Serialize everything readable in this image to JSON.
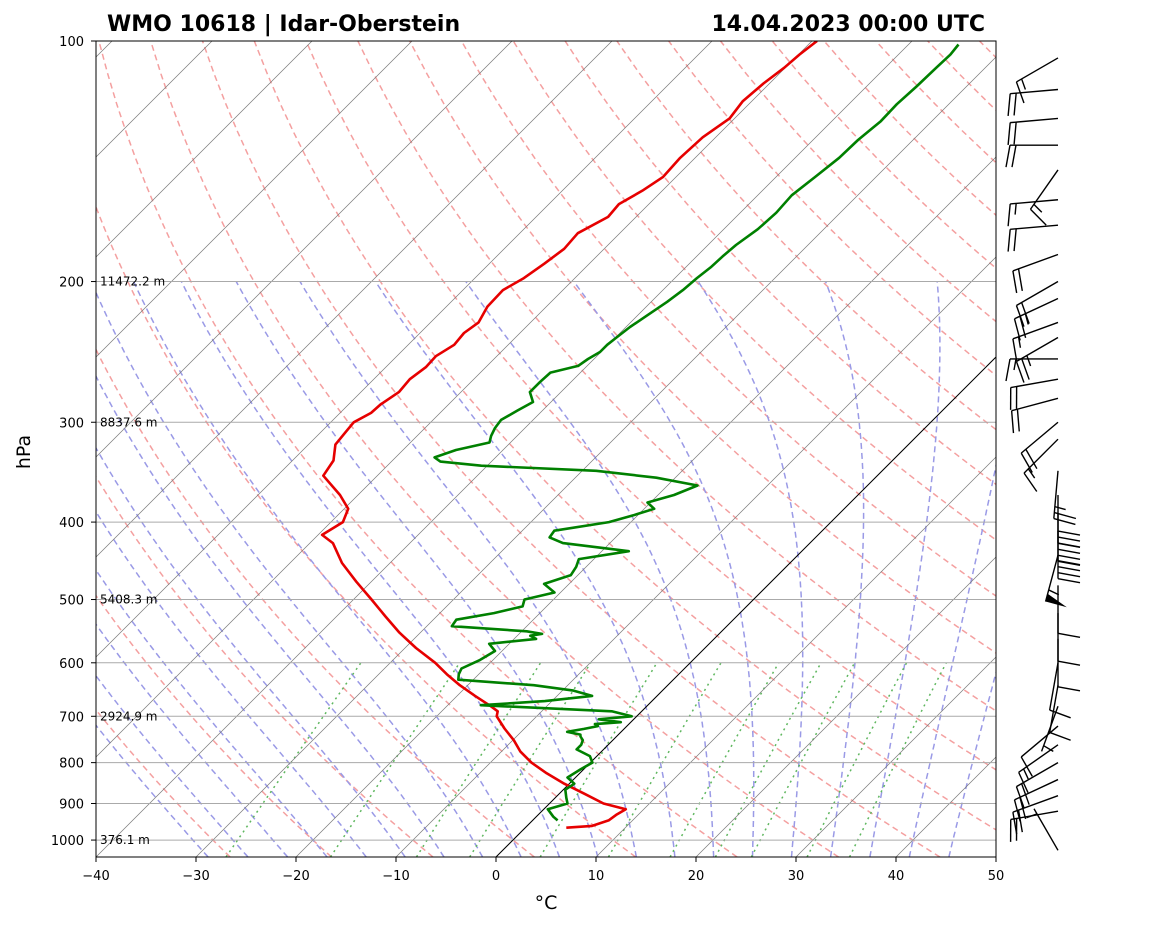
{
  "header": {
    "station": "WMO 10618 | Idar-Oberstein",
    "datetime": "14.04.2023 00:00 UTC"
  },
  "chart_data": {
    "type": "line",
    "skew_t": true,
    "xlabel": "°C",
    "ylabel": "hPa",
    "xlim": [
      -40,
      50
    ],
    "ylim": [
      1050,
      100
    ],
    "y_scale": "log",
    "x_ticks": [
      -40,
      -30,
      -20,
      -10,
      0,
      10,
      20,
      30,
      40,
      50
    ],
    "x_tick_labels": [
      "−40",
      "−30",
      "−20",
      "−10",
      "0",
      "10",
      "20",
      "30",
      "40",
      "50"
    ],
    "y_ticks": [
      100,
      200,
      300,
      400,
      500,
      600,
      700,
      800,
      900,
      1000
    ],
    "y_tick_labels": [
      "100",
      "200",
      "300",
      "400",
      "500",
      "600",
      "700",
      "800",
      "900",
      "1000"
    ],
    "height_labels": [
      {
        "p": 1000,
        "text": "376.1 m"
      },
      {
        "p": 700,
        "text": "2924.9 m"
      },
      {
        "p": 500,
        "text": "5408.3 m"
      },
      {
        "p": 300,
        "text": "8837.6 m"
      },
      {
        "p": 200,
        "text": "11472.2 m"
      }
    ],
    "zero_isotherm": 0,
    "series": [
      {
        "color": "#e60000",
        "p": [
          965,
          960,
          945,
          930,
          915,
          900,
          875,
          850,
          825,
          800,
          775,
          750,
          725,
          700,
          690,
          680,
          660,
          640,
          620,
          600,
          575,
          550,
          525,
          500,
          475,
          450,
          425,
          415,
          400,
          385,
          370,
          350,
          335,
          320,
          310,
          300,
          292,
          285,
          275,
          265,
          256,
          248,
          240,
          232,
          225,
          215,
          205,
          198,
          190,
          182,
          174,
          166,
          160,
          154,
          148,
          140,
          132,
          125,
          119,
          113,
          108,
          104,
          100
        ],
        "t": [
          4.1,
          6.5,
          7.6,
          7.8,
          8.2,
          5.4,
          2.5,
          -0.5,
          -3.3,
          -5.9,
          -8.1,
          -9.9,
          -12.0,
          -14.0,
          -14.4,
          -15.6,
          -18.2,
          -20.8,
          -23.2,
          -25.5,
          -28.9,
          -32.1,
          -35.1,
          -38.2,
          -41.5,
          -44.8,
          -47.7,
          -49.6,
          -48.8,
          -49.6,
          -51.8,
          -55.4,
          -55.9,
          -57.3,
          -57.5,
          -57.7,
          -56.9,
          -56.8,
          -56.2,
          -56.4,
          -56.0,
          -56.1,
          -55.4,
          -55.6,
          -55.2,
          -55.9,
          -56.0,
          -55.1,
          -54.5,
          -54.0,
          -54.2,
          -52.8,
          -53.0,
          -52.0,
          -51.3,
          -51.5,
          -51.3,
          -50.5,
          -50.9,
          -50.6,
          -50.1,
          -49.9,
          -49.5
        ]
      },
      {
        "color": "#008000",
        "p": [
          945,
          935,
          915,
          900,
          885,
          865,
          850,
          835,
          815,
          800,
          785,
          770,
          760,
          750,
          742,
          738,
          732,
          726,
          720,
          716,
          712,
          706,
          700,
          690,
          678,
          670,
          660,
          650,
          640,
          630,
          620,
          610,
          595,
          580,
          568,
          560,
          555,
          552,
          548,
          540,
          530,
          520,
          510,
          500,
          490,
          478,
          466,
          455,
          445,
          435,
          425,
          418,
          410,
          400,
          392,
          385,
          378,
          370,
          360,
          352,
          345,
          340,
          336,
          332,
          325,
          318,
          312,
          305,
          298,
          290,
          283,
          275,
          267,
          260,
          255,
          250,
          245,
          240,
          235,
          228,
          220,
          212,
          205,
          198,
          192,
          186,
          180,
          172,
          164,
          156,
          148,
          140,
          133,
          126,
          120,
          114,
          108,
          104,
          101
        ],
        "t": [
          2.5,
          1.7,
          0.4,
          1.8,
          1.1,
          0.2,
          0.5,
          -0.8,
          -0.3,
          0.2,
          -0.7,
          -2.7,
          -2.7,
          -3.0,
          -3.6,
          -3.8,
          -5.4,
          -4.0,
          -2.9,
          -3.4,
          -1.0,
          -3.5,
          -0.5,
          -3.0,
          -16.7,
          -10.7,
          -6.5,
          -8.9,
          -13.4,
          -21.5,
          -22.0,
          -22.3,
          -21.3,
          -20.7,
          -22.0,
          -17.8,
          -18.7,
          -17.7,
          -19.5,
          -27.5,
          -27.7,
          -24.6,
          -22.4,
          -22.9,
          -20.6,
          -22.5,
          -20.7,
          -21.0,
          -21.5,
          -17.3,
          -24.7,
          -26.6,
          -26.8,
          -22.2,
          -20.4,
          -19.0,
          -20.3,
          -18.4,
          -17.0,
          -21.9,
          -28.6,
          -40.6,
          -45.1,
          -46.1,
          -44.7,
          -42.1,
          -42.6,
          -43.0,
          -43.2,
          -42.5,
          -41.8,
          -43.1,
          -43.1,
          -43.0,
          -40.9,
          -40.6,
          -40.1,
          -40.1,
          -39.9,
          -39.6,
          -39.0,
          -38.4,
          -38.0,
          -37.8,
          -37.5,
          -37.4,
          -37.2,
          -36.6,
          -36.4,
          -36.6,
          -36.1,
          -35.6,
          -35.5,
          -35.1,
          -35.2,
          -35.0,
          -34.9,
          -34.8,
          -35.0
        ]
      }
    ],
    "wind_barbs": [
      {
        "p": 1030,
        "speed": 5,
        "direction": 330
      },
      {
        "p": 920,
        "speed": 20,
        "direction": 260
      },
      {
        "p": 880,
        "speed": 20,
        "direction": 250
      },
      {
        "p": 840,
        "speed": 20,
        "direction": 245
      },
      {
        "p": 800,
        "speed": 20,
        "direction": 240
      },
      {
        "p": 760,
        "speed": 15,
        "direction": 235
      },
      {
        "p": 720,
        "speed": 10,
        "direction": 230
      },
      {
        "p": 680,
        "speed": 5,
        "direction": 200
      },
      {
        "p": 640,
        "speed": 10,
        "direction": 190
      },
      {
        "p": 600,
        "speed": 10,
        "direction": 190
      },
      {
        "p": 560,
        "speed": 10,
        "direction": 180
      },
      {
        "p": 520,
        "speed": 10,
        "direction": 180
      },
      {
        "p": 480,
        "speed": 10,
        "direction": 180
      },
      {
        "p": 440,
        "speed": 55,
        "direction": 195
      },
      {
        "p": 410,
        "speed": 40,
        "direction": 180
      },
      {
        "p": 390,
        "speed": 40,
        "direction": 180
      },
      {
        "p": 370,
        "speed": 30,
        "direction": 180
      },
      {
        "p": 345,
        "speed": 25,
        "direction": 185
      },
      {
        "p": 315,
        "speed": 15,
        "direction": 225
      },
      {
        "p": 300,
        "speed": 20,
        "direction": 230
      },
      {
        "p": 280,
        "speed": 20,
        "direction": 255
      },
      {
        "p": 265,
        "speed": 20,
        "direction": 260
      },
      {
        "p": 250,
        "speed": 15,
        "direction": 270
      },
      {
        "p": 235,
        "speed": 25,
        "direction": 240
      },
      {
        "p": 225,
        "speed": 15,
        "direction": 250
      },
      {
        "p": 210,
        "speed": 25,
        "direction": 245
      },
      {
        "p": 200,
        "speed": 20,
        "direction": 240
      },
      {
        "p": 185,
        "speed": 20,
        "direction": 250
      },
      {
        "p": 170,
        "speed": 20,
        "direction": 265
      },
      {
        "p": 158,
        "speed": 15,
        "direction": 265
      },
      {
        "p": 145,
        "speed": 15,
        "direction": 215
      },
      {
        "p": 135,
        "speed": 20,
        "direction": 270
      },
      {
        "p": 125,
        "speed": 20,
        "direction": 265
      },
      {
        "p": 115,
        "speed": 20,
        "direction": 265
      },
      {
        "p": 105,
        "speed": 15,
        "direction": 240
      }
    ],
    "grid": true
  },
  "colors": {
    "temperature": "#e60000",
    "dewpoint": "#008000",
    "dry_adiabat": "#f4a0a0",
    "moist_adiabat": "#9a9ae6",
    "mixing_ratio": "#5fb75f",
    "isotherm": "#7a7a7a",
    "grid": "#aaaaaa"
  }
}
